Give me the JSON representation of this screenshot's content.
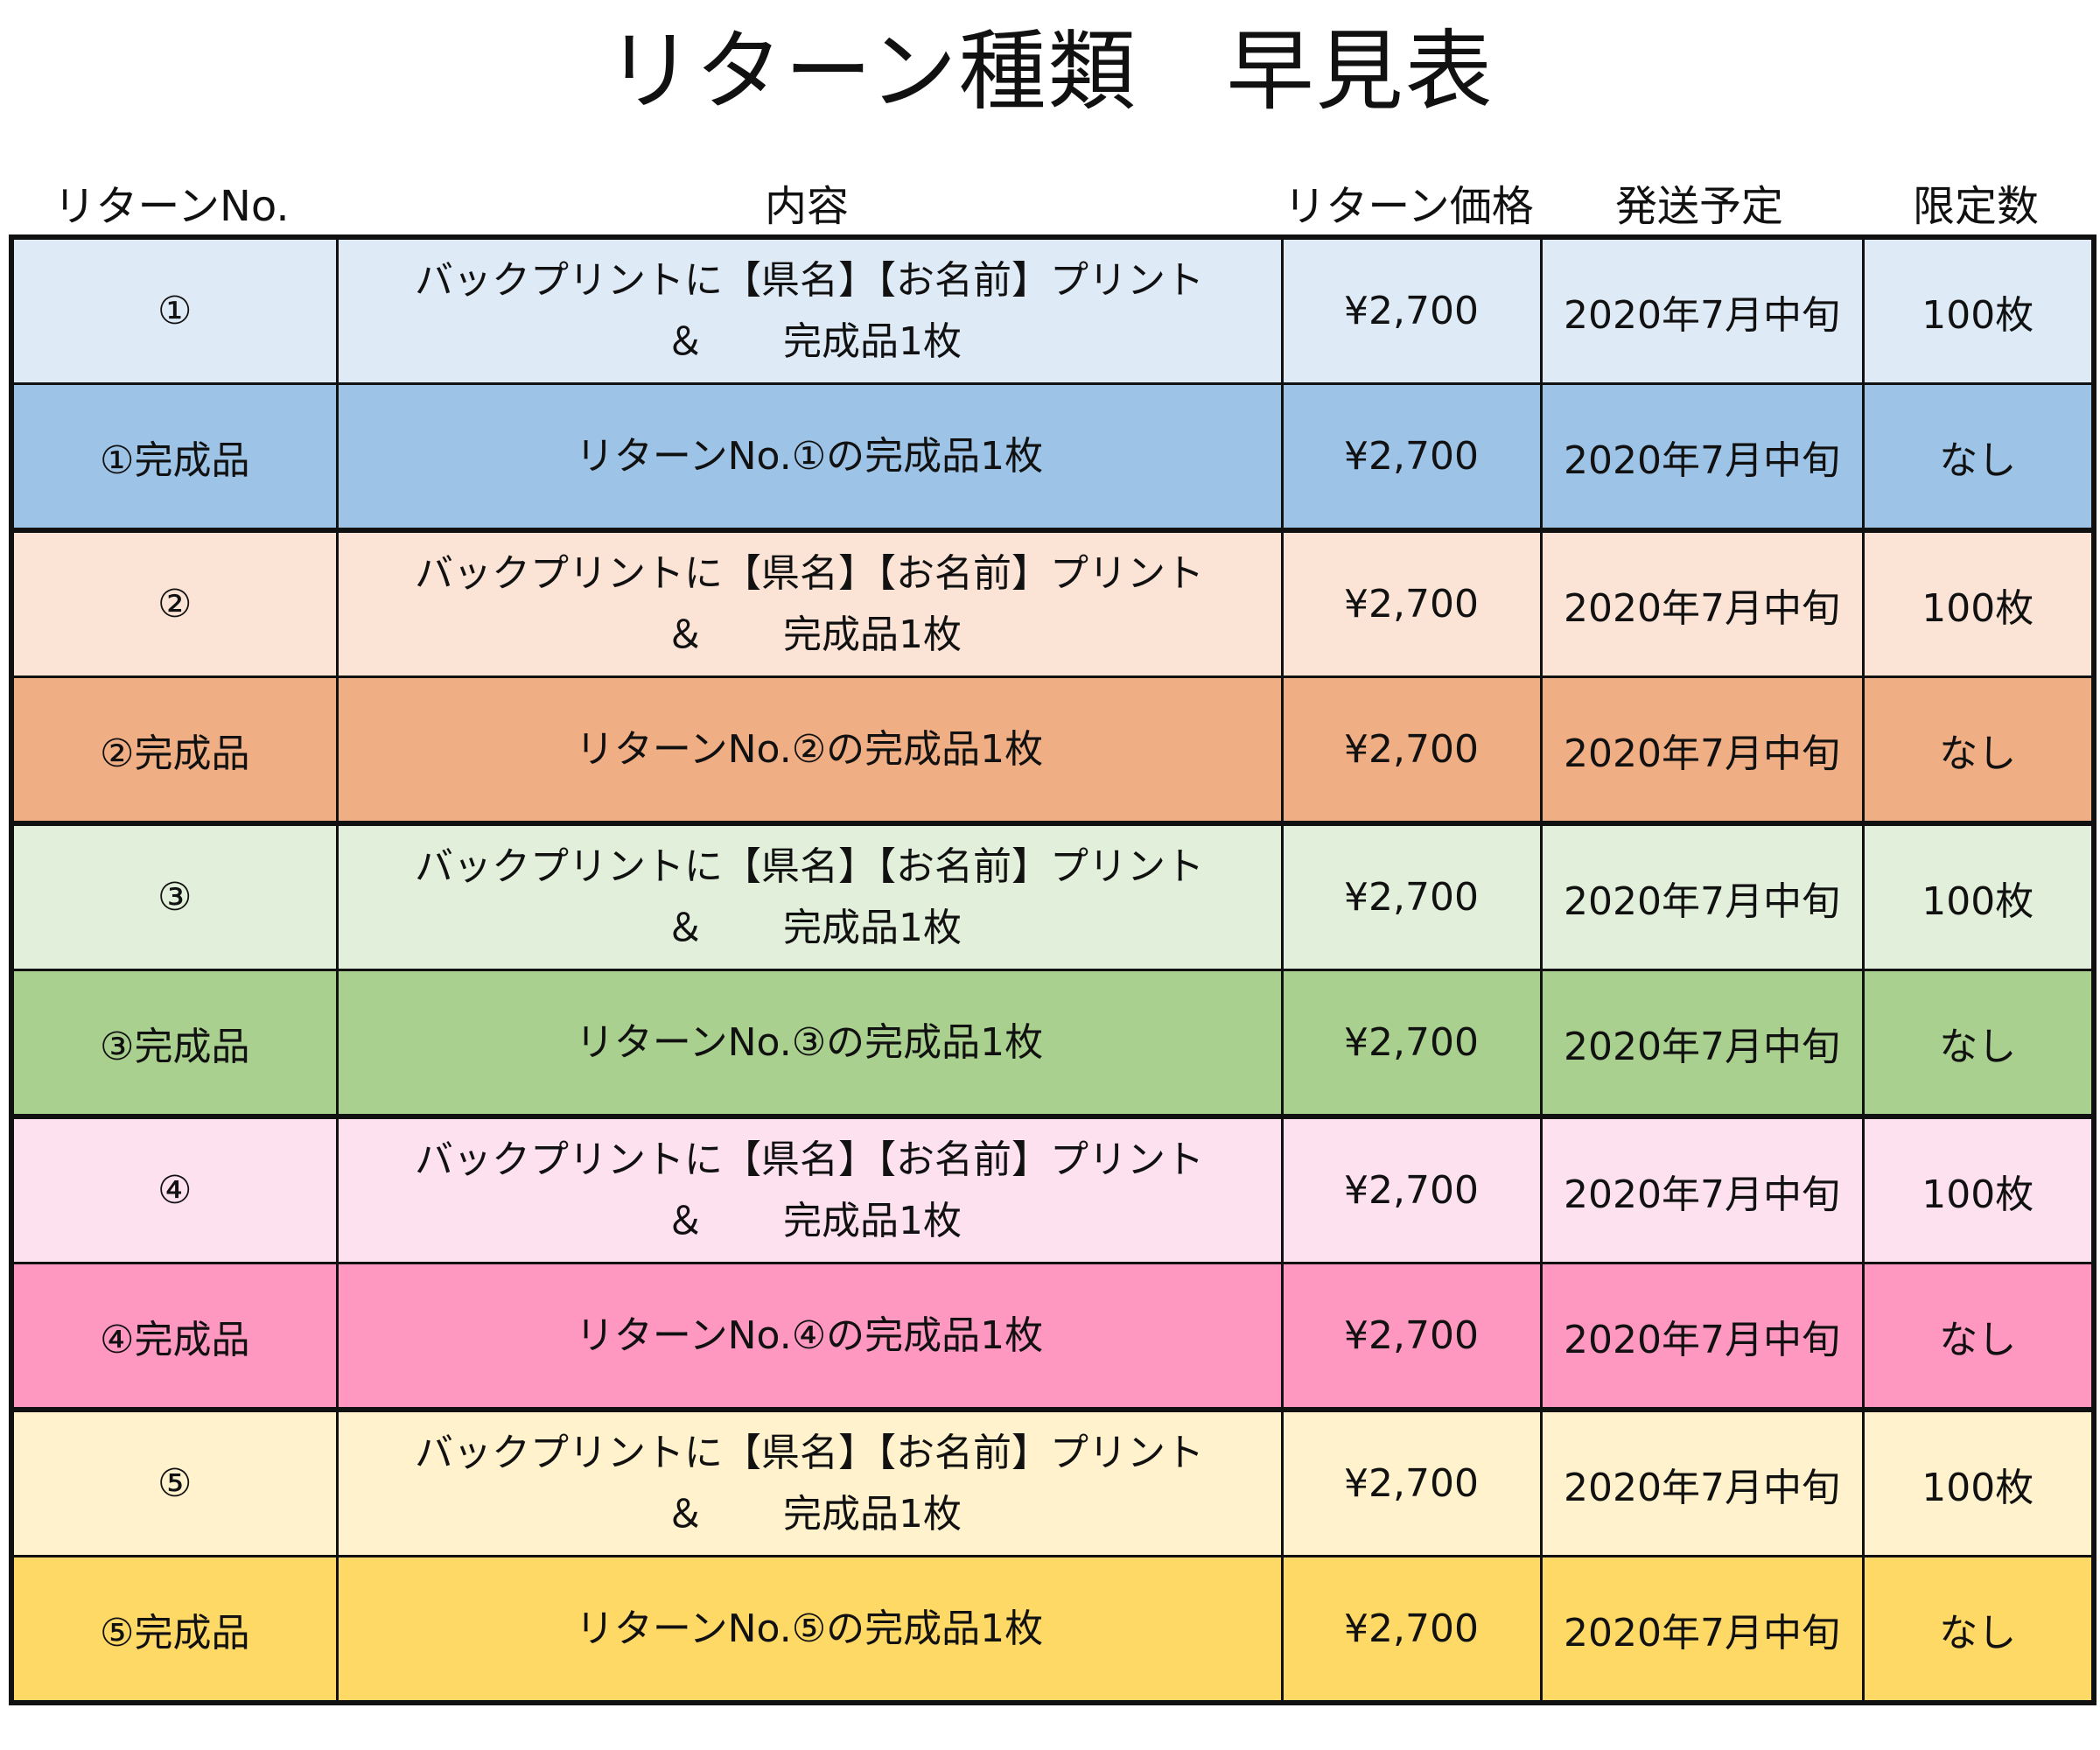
{
  "title": "リターン種類　早見表",
  "headers": {
    "no": "リターンNo.",
    "content": "内容",
    "price": "リターン価格",
    "ship": "発送予定",
    "limit": "限定数"
  },
  "rows": [
    {
      "no": "①",
      "content_line1": "バックプリントに【県名】【お名前】プリント",
      "content_amp": "＆",
      "content_tail": "完成品1枚",
      "price": "¥2,700",
      "ship": "2020年7月中旬",
      "limit": "100枚",
      "color": "#deebf7"
    },
    {
      "no": "①完成品",
      "content_line1": "リターンNo.①の完成品1枚",
      "price": "¥2,700",
      "ship": "2020年7月中旬",
      "limit": "なし",
      "color": "#9dc3e6"
    },
    {
      "no": "②",
      "content_line1": "バックプリントに【県名】【お名前】プリント",
      "content_amp": "＆",
      "content_tail": "完成品1枚",
      "price": "¥2,700",
      "ship": "2020年7月中旬",
      "limit": "100枚",
      "color": "#fbe3d6"
    },
    {
      "no": "②完成品",
      "content_line1": "リターンNo.②の完成品1枚",
      "price": "¥2,700",
      "ship": "2020年7月中旬",
      "limit": "なし",
      "color": "#f0ae84"
    },
    {
      "no": "③",
      "content_line1": "バックプリントに【県名】【お名前】プリント",
      "content_amp": "＆",
      "content_tail": "完成品1枚",
      "price": "¥2,700",
      "ship": "2020年7月中旬",
      "limit": "100枚",
      "color": "#e2efda"
    },
    {
      "no": "③完成品",
      "content_line1": "リターンNo.③の完成品1枚",
      "price": "¥2,700",
      "ship": "2020年7月中旬",
      "limit": "なし",
      "color": "#a9d08e"
    },
    {
      "no": "④",
      "content_line1": "バックプリントに【県名】【お名前】プリント",
      "content_amp": "＆",
      "content_tail": "完成品1枚",
      "price": "¥2,700",
      "ship": "2020年7月中旬",
      "limit": "100枚",
      "color": "#fde1ee"
    },
    {
      "no": "④完成品",
      "content_line1": "リターンNo.④の完成品1枚",
      "price": "¥2,700",
      "ship": "2020年7月中旬",
      "limit": "なし",
      "color": "#fe98c0"
    },
    {
      "no": "⑤",
      "content_line1": "バックプリントに【県名】【お名前】プリント",
      "content_amp": "＆",
      "content_tail": "完成品1枚",
      "price": "¥2,700",
      "ship": "2020年7月中旬",
      "limit": "100枚",
      "color": "#fff2cc"
    },
    {
      "no": "⑤完成品",
      "content_line1": "リターンNo.⑤の完成品1枚",
      "price": "¥2,700",
      "ship": "2020年7月中旬",
      "limit": "なし",
      "color": "#ffd966"
    }
  ]
}
